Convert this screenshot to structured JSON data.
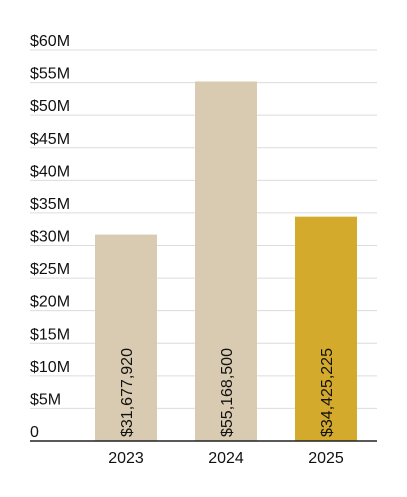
{
  "chart_data": {
    "type": "bar",
    "categories": [
      "2023",
      "2024",
      "2025"
    ],
    "values": [
      31677920,
      55168500,
      34425225
    ],
    "data_labels": [
      "$31,677,920",
      "$55,168,500",
      "$34,425,225"
    ],
    "bar_colors": [
      "#d9cbb1",
      "#d9cbb1",
      "#d4aa2c"
    ],
    "ylim": [
      0,
      60000000
    ],
    "y_ticks": [
      {
        "value": 0,
        "label": "0"
      },
      {
        "value": 5000000,
        "label": "$5M"
      },
      {
        "value": 10000000,
        "label": "$10M"
      },
      {
        "value": 15000000,
        "label": "$15M"
      },
      {
        "value": 20000000,
        "label": "$20M"
      },
      {
        "value": 25000000,
        "label": "$25M"
      },
      {
        "value": 30000000,
        "label": "$30M"
      },
      {
        "value": 35000000,
        "label": "$35M"
      },
      {
        "value": 40000000,
        "label": "$40M"
      },
      {
        "value": 45000000,
        "label": "$45M"
      },
      {
        "value": 50000000,
        "label": "$50M"
      },
      {
        "value": 55000000,
        "label": "$55M"
      },
      {
        "value": 60000000,
        "label": "$60M"
      }
    ],
    "grid": true,
    "title": "",
    "xlabel": "",
    "ylabel": ""
  }
}
